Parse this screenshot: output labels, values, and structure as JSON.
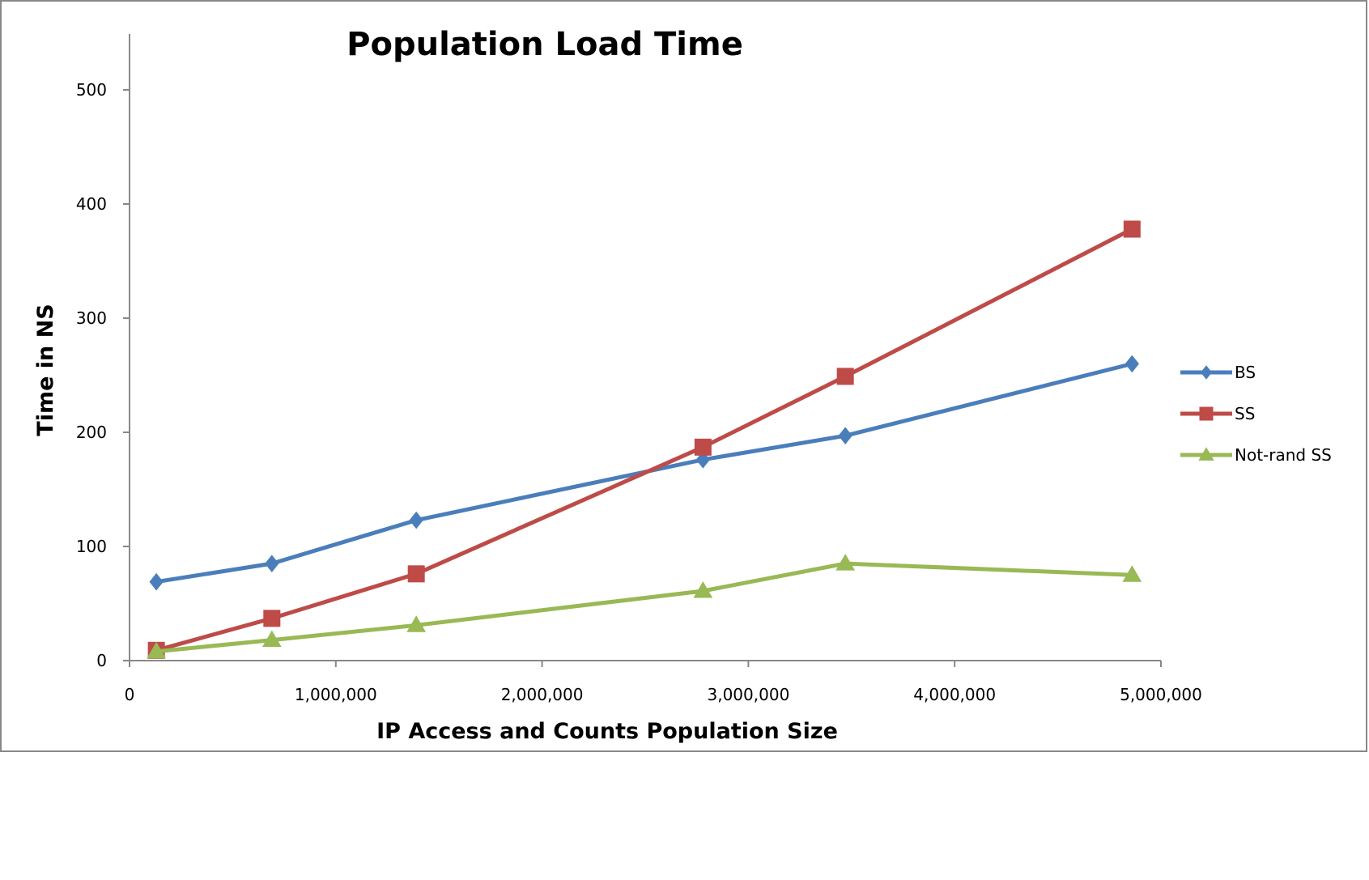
{
  "chart_data": {
    "type": "line",
    "title": "Population Load Time",
    "xlabel": "IP Access and Counts Population Size",
    "ylabel": "Time in NS",
    "xlim": [
      0,
      5000000
    ],
    "ylim": [
      0,
      500
    ],
    "x_ticks": [
      {
        "value": 0,
        "label": "0"
      },
      {
        "value": 1000000,
        "label": "1,000,000"
      },
      {
        "value": 2000000,
        "label": "2,000,000"
      },
      {
        "value": 3000000,
        "label": "3,000,000"
      },
      {
        "value": 4000000,
        "label": "4,000,000"
      },
      {
        "value": 5000000,
        "label": "5,000,000"
      }
    ],
    "y_ticks": [
      {
        "value": 0,
        "label": "0"
      },
      {
        "value": 100,
        "label": "100"
      },
      {
        "value": 200,
        "label": "200"
      },
      {
        "value": 300,
        "label": "300"
      },
      {
        "value": 400,
        "label": "400"
      },
      {
        "value": 500,
        "label": "500"
      }
    ],
    "grid": false,
    "legend_position": "right",
    "series": [
      {
        "name": "BS",
        "color": "#4a7ebb",
        "marker": "diamond",
        "points": [
          [
            130000,
            69
          ],
          [
            690000,
            85
          ],
          [
            1390000,
            123
          ],
          [
            2780000,
            176
          ],
          [
            3470000,
            197
          ],
          [
            4860000,
            260
          ]
        ]
      },
      {
        "name": "SS",
        "color": "#be4b48",
        "marker": "square",
        "points": [
          [
            130000,
            9
          ],
          [
            690000,
            37
          ],
          [
            1390000,
            76
          ],
          [
            2780000,
            187
          ],
          [
            3470000,
            249
          ],
          [
            4860000,
            378
          ]
        ]
      },
      {
        "name": "Not-rand SS",
        "color": "#98b954",
        "marker": "triangle",
        "points": [
          [
            130000,
            8
          ],
          [
            690000,
            18
          ],
          [
            1390000,
            31
          ],
          [
            2780000,
            61
          ],
          [
            3470000,
            85
          ],
          [
            4860000,
            75
          ]
        ]
      }
    ]
  }
}
